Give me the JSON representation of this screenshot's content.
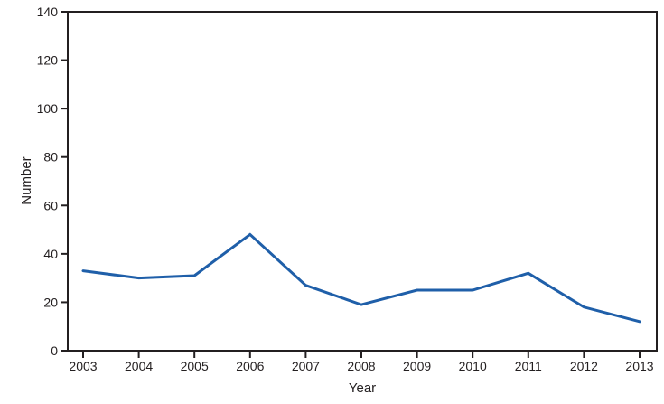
{
  "chart_data": {
    "type": "line",
    "title": "",
    "xlabel": "Year",
    "ylabel": "Number",
    "categories": [
      "2003",
      "2004",
      "2005",
      "2006",
      "2007",
      "2008",
      "2009",
      "2010",
      "2011",
      "2012",
      "2013"
    ],
    "values": [
      33,
      30,
      31,
      48,
      27,
      19,
      25,
      25,
      32,
      18,
      12
    ],
    "ylim": [
      0,
      140
    ],
    "ytick_step": 20,
    "grid": false,
    "legend": false,
    "line_color": "#1f5fa9",
    "axis_color": "#231f20"
  }
}
